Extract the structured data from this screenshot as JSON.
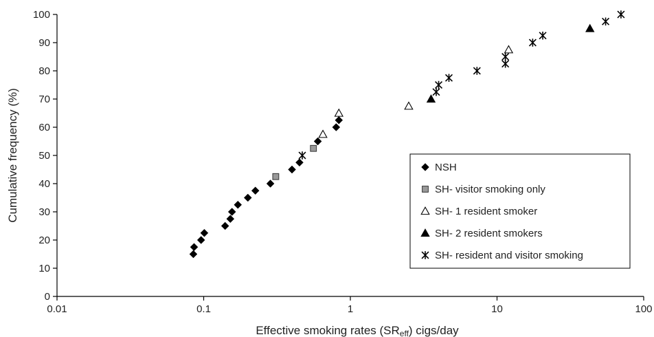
{
  "chart_data": {
    "type": "scatter",
    "title": "",
    "xlabel": {
      "main": "Effective smoking rates (SR",
      "sub": "eff",
      "tail": ") cigs/day"
    },
    "ylabel": "Cumulative frequency (%)",
    "x_scale": "log",
    "xlim": [
      0.01,
      100
    ],
    "ylim": [
      0,
      100
    ],
    "x_ticks": [
      {
        "value": 0.01,
        "label": "0.01"
      },
      {
        "value": 0.1,
        "label": "0.1"
      },
      {
        "value": 1,
        "label": "1"
      },
      {
        "value": 10,
        "label": "10"
      },
      {
        "value": 100,
        "label": "100"
      }
    ],
    "y_ticks": [
      {
        "value": 0,
        "label": "0"
      },
      {
        "value": 10,
        "label": "10"
      },
      {
        "value": 20,
        "label": "20"
      },
      {
        "value": 30,
        "label": "30"
      },
      {
        "value": 40,
        "label": "40"
      },
      {
        "value": 50,
        "label": "50"
      },
      {
        "value": 60,
        "label": "60"
      },
      {
        "value": 70,
        "label": "70"
      },
      {
        "value": 80,
        "label": "80"
      },
      {
        "value": 90,
        "label": "90"
      },
      {
        "value": 100,
        "label": "100"
      }
    ],
    "grid": false,
    "legend_position": "right",
    "series": [
      {
        "name": "NSH",
        "marker": "diamond",
        "color": "#000000",
        "points": [
          [
            0.085,
            15
          ],
          [
            0.086,
            17.5
          ],
          [
            0.096,
            20
          ],
          [
            0.101,
            22.5
          ],
          [
            0.14,
            25
          ],
          [
            0.152,
            27.5
          ],
          [
            0.156,
            30
          ],
          [
            0.171,
            32.5
          ],
          [
            0.2,
            35
          ],
          [
            0.225,
            37.5
          ],
          [
            0.285,
            40
          ],
          [
            0.4,
            45
          ],
          [
            0.45,
            47.5
          ],
          [
            0.6,
            55
          ],
          [
            0.8,
            60
          ],
          [
            0.835,
            62.5
          ]
        ]
      },
      {
        "name": "SH- visitor smoking only",
        "marker": "square",
        "color": "#999999",
        "points": [
          [
            0.31,
            42.5
          ],
          [
            0.56,
            52.5
          ]
        ]
      },
      {
        "name": "SH- 1 resident smoker",
        "marker": "triangle-open",
        "color": "#000000",
        "points": [
          [
            0.65,
            57.5
          ],
          [
            0.835,
            65
          ],
          [
            2.5,
            67.5
          ],
          [
            12,
            87.5
          ]
        ]
      },
      {
        "name": "SH- 2 resident smokers",
        "marker": "triangle-filled",
        "color": "#000000",
        "points": [
          [
            3.55,
            70
          ],
          [
            43,
            95
          ]
        ]
      },
      {
        "name": "SH- resident and visitor smoking",
        "marker": "asterisk",
        "color": "#000000",
        "points": [
          [
            0.47,
            50
          ],
          [
            3.85,
            72.5
          ],
          [
            4.0,
            75
          ],
          [
            4.7,
            77.5
          ],
          [
            7.3,
            80
          ],
          [
            11.4,
            82.5
          ],
          [
            11.4,
            85
          ],
          [
            17.5,
            90
          ],
          [
            20.5,
            92.5
          ],
          [
            55,
            97.5
          ],
          [
            70,
            100
          ]
        ]
      }
    ]
  }
}
